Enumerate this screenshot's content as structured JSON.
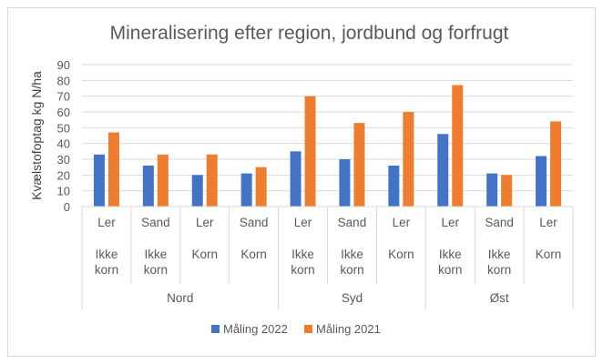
{
  "chart_data": {
    "type": "bar",
    "title": "Mineralisering efter region, jordbund og forfrugt",
    "xlabel": "",
    "ylabel": "Kvælstofoptag kg N/ha",
    "ylim": [
      0,
      90
    ],
    "yticks": [
      0,
      10,
      20,
      30,
      40,
      50,
      60,
      70,
      80,
      90
    ],
    "grid": true,
    "legend_position": "bottom",
    "categories": [
      {
        "soil": "Ler",
        "crop": [
          "Ikke",
          "korn"
        ],
        "region": "Nord"
      },
      {
        "soil": "Sand",
        "crop": [
          "Ikke",
          "korn"
        ],
        "region": "Nord"
      },
      {
        "soil": "Ler",
        "crop": [
          "Korn"
        ],
        "region": "Nord"
      },
      {
        "soil": "Sand",
        "crop": [
          "Korn"
        ],
        "region": "Nord"
      },
      {
        "soil": "Ler",
        "crop": [
          "Ikke",
          "korn"
        ],
        "region": "Syd"
      },
      {
        "soil": "Sand",
        "crop": [
          "Ikke",
          "korn"
        ],
        "region": "Syd"
      },
      {
        "soil": "Ler",
        "crop": [
          "Korn"
        ],
        "region": "Syd"
      },
      {
        "soil": "Ler",
        "crop": [
          "Ikke",
          "korn"
        ],
        "region": "Øst"
      },
      {
        "soil": "Sand",
        "crop": [
          "Ikke",
          "korn"
        ],
        "region": "Øst"
      },
      {
        "soil": "Ler",
        "crop": [
          "Korn"
        ],
        "region": "Øst"
      }
    ],
    "regions": [
      {
        "name": "Nord",
        "count": 4
      },
      {
        "name": "Syd",
        "count": 3
      },
      {
        "name": "Øst",
        "count": 3
      }
    ],
    "series": [
      {
        "name": "Måling 2022",
        "color": "#4472C4",
        "values": [
          33,
          26,
          20,
          21,
          35,
          30,
          26,
          46,
          21,
          32
        ]
      },
      {
        "name": "Måling 2021",
        "color": "#ED7D31",
        "values": [
          47,
          33,
          33,
          25,
          70,
          53,
          60,
          77,
          20,
          54
        ]
      }
    ]
  }
}
